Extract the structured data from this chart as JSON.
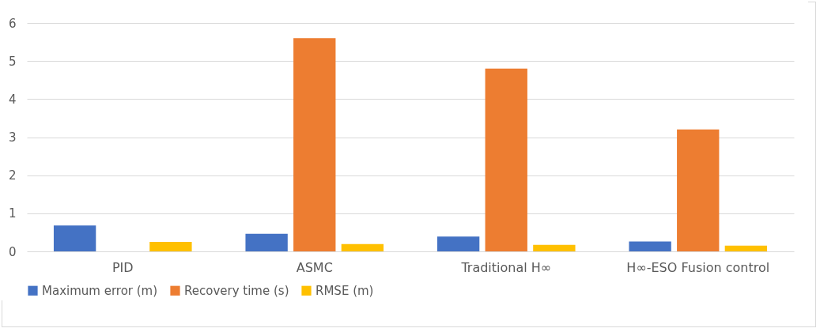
{
  "chart_data": {
    "type": "bar",
    "categories": [
      "PID",
      "ASMC",
      "Traditional H∞",
      "H∞-ESO Fusion control"
    ],
    "series": [
      {
        "name": "Maximum error (m)",
        "color": "#4472c4",
        "values": [
          0.68,
          0.46,
          0.39,
          0.26
        ]
      },
      {
        "name": "Recovery time (s)",
        "color": "#ed7d31",
        "values": [
          null,
          5.6,
          4.8,
          3.2
        ]
      },
      {
        "name": "RMSE (m)",
        "color": "#ffc000",
        "values": [
          0.25,
          0.19,
          0.17,
          0.15
        ]
      }
    ],
    "ylim": [
      0,
      6
    ],
    "yticks": [
      0,
      1,
      2,
      3,
      4,
      5,
      6
    ],
    "grid": "y",
    "legend": "bottom"
  }
}
